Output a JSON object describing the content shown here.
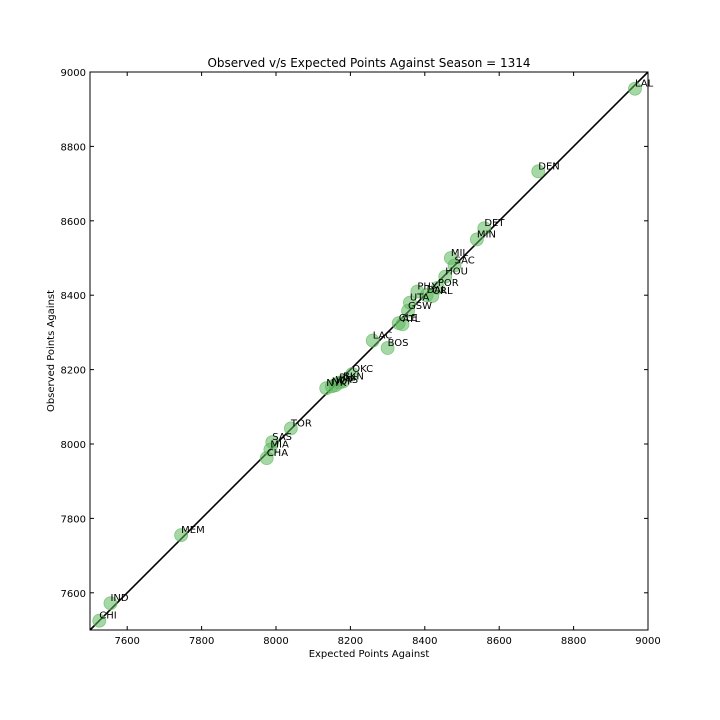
{
  "chart_data": {
    "type": "scatter",
    "title": "Observed v/s Expected Points Against Season = 1314",
    "xlabel": "Expected Points Against",
    "ylabel": "Observed Points Against",
    "xlim": [
      7500,
      9000
    ],
    "ylim": [
      7500,
      9000
    ],
    "xticks": [
      7600,
      7800,
      8000,
      8200,
      8400,
      8600,
      8800,
      9000
    ],
    "yticks": [
      7600,
      7800,
      8000,
      8200,
      8400,
      8600,
      8800,
      9000
    ],
    "grid": false,
    "reference_line": {
      "from": [
        7500,
        7500
      ],
      "to": [
        9000,
        9000
      ],
      "color": "#000000"
    },
    "marker_color": "#5cb85c",
    "points": [
      {
        "label": "LAL",
        "x": 8965,
        "y": 8955
      },
      {
        "label": "DEN",
        "x": 8705,
        "y": 8733
      },
      {
        "label": "DET",
        "x": 8560,
        "y": 8580
      },
      {
        "label": "MIN",
        "x": 8540,
        "y": 8550
      },
      {
        "label": "MIL",
        "x": 8470,
        "y": 8500
      },
      {
        "label": "SAC",
        "x": 8480,
        "y": 8480
      },
      {
        "label": "HOU",
        "x": 8455,
        "y": 8450
      },
      {
        "label": "POR",
        "x": 8435,
        "y": 8420
      },
      {
        "label": "PHX",
        "x": 8380,
        "y": 8410
      },
      {
        "label": "DAL",
        "x": 8405,
        "y": 8400
      },
      {
        "label": "ORL",
        "x": 8420,
        "y": 8398
      },
      {
        "label": "UTA",
        "x": 8360,
        "y": 8380
      },
      {
        "label": "GSW",
        "x": 8355,
        "y": 8358
      },
      {
        "label": "CLE",
        "x": 8330,
        "y": 8325
      },
      {
        "label": "ATL",
        "x": 8340,
        "y": 8322
      },
      {
        "label": "LAC",
        "x": 8260,
        "y": 8278
      },
      {
        "label": "BOS",
        "x": 8300,
        "y": 8258
      },
      {
        "label": "OKC",
        "x": 8205,
        "y": 8188
      },
      {
        "label": "BKN",
        "x": 8180,
        "y": 8168
      },
      {
        "label": "PHI",
        "x": 8170,
        "y": 8165
      },
      {
        "label": "WAS",
        "x": 8160,
        "y": 8158
      },
      {
        "label": "NYK",
        "x": 8135,
        "y": 8150
      },
      {
        "label": "NOP",
        "x": 8150,
        "y": 8155
      },
      {
        "label": "TOR",
        "x": 8040,
        "y": 8042
      },
      {
        "label": "SAS",
        "x": 7990,
        "y": 8005
      },
      {
        "label": "MIA",
        "x": 7985,
        "y": 7985
      },
      {
        "label": "CHA",
        "x": 7975,
        "y": 7962
      },
      {
        "label": "MEM",
        "x": 7745,
        "y": 7755
      },
      {
        "label": "IND",
        "x": 7555,
        "y": 7572
      },
      {
        "label": "CHI",
        "x": 7525,
        "y": 7525
      }
    ]
  }
}
